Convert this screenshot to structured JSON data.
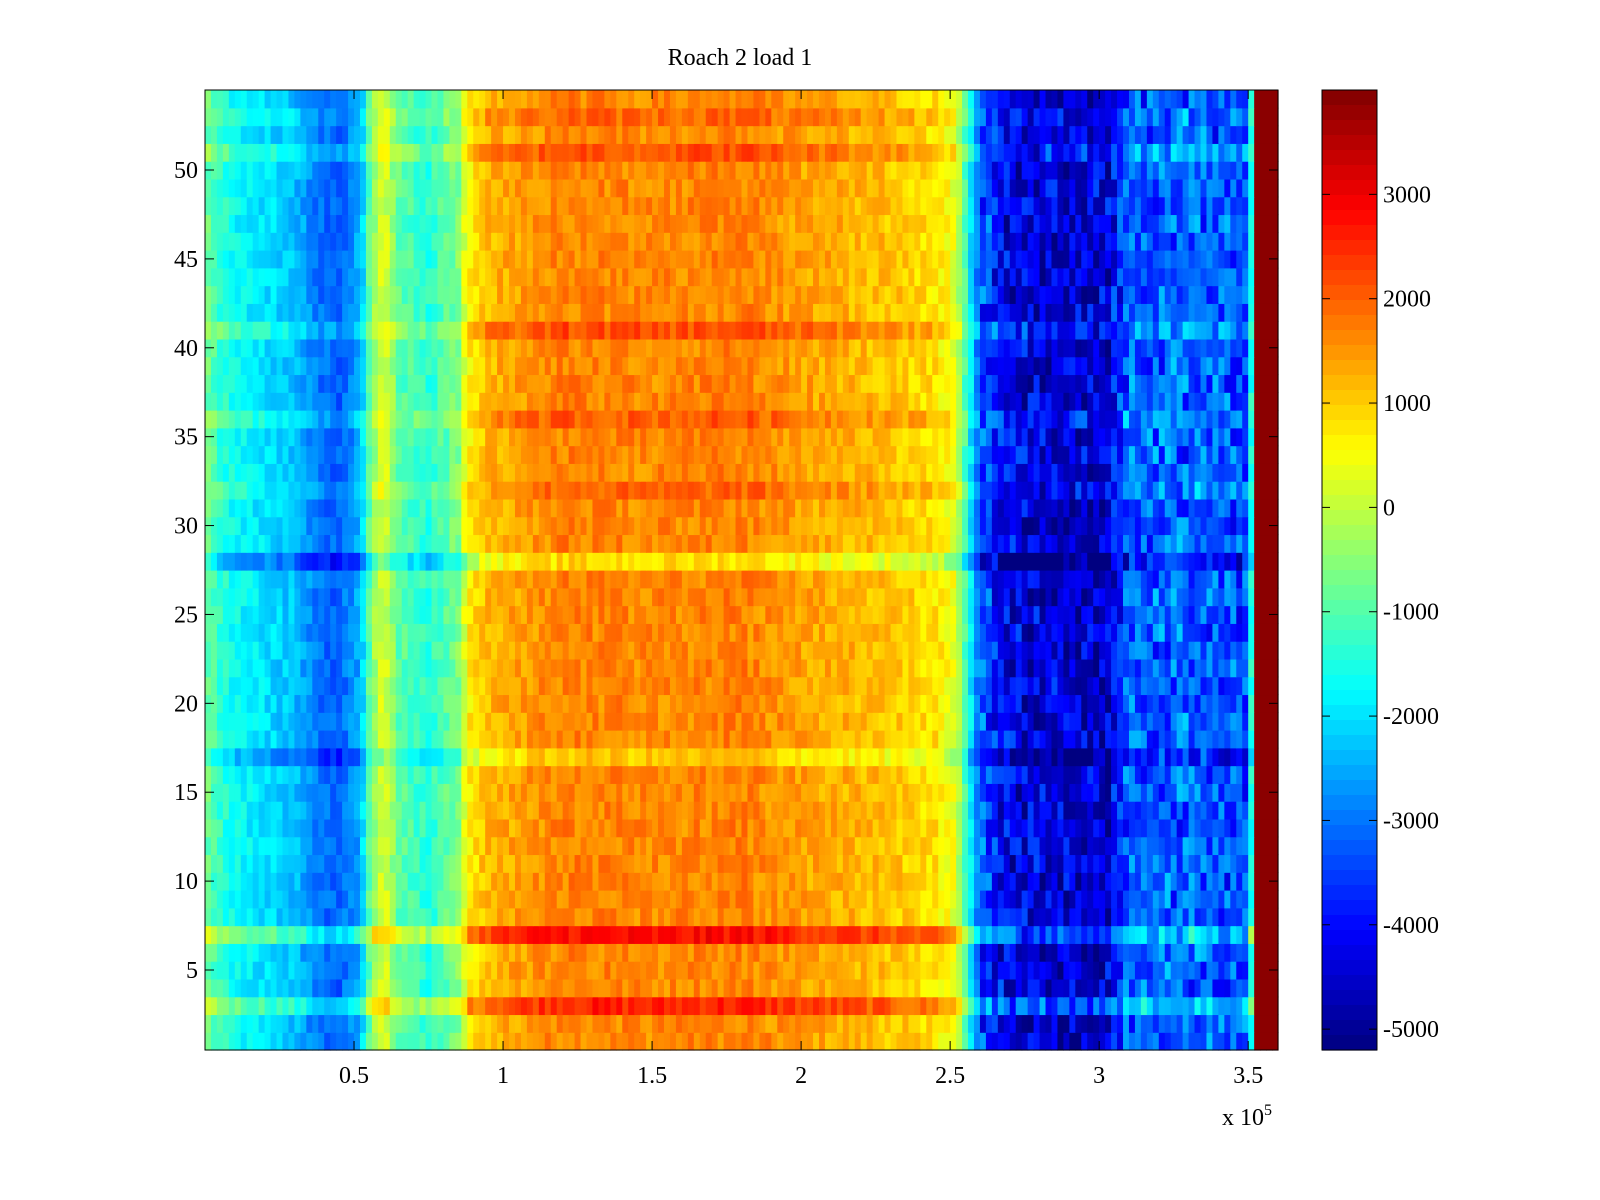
{
  "chart_data": {
    "type": "heatmap",
    "title": "Roach 2 load 1",
    "xlabel": "",
    "ylabel": "",
    "x_exponent_label": "x 10",
    "x_exponent_power": "5",
    "xlim": [
      0,
      3.6
    ],
    "ylim": [
      0.5,
      54.5
    ],
    "x_ticks": [
      0.5,
      1,
      1.5,
      2,
      2.5,
      3,
      3.5
    ],
    "x_tick_labels": [
      "0.5",
      "1",
      "1.5",
      "2",
      "2.5",
      "3",
      "3.5"
    ],
    "y_ticks": [
      5,
      10,
      15,
      20,
      25,
      30,
      35,
      40,
      45,
      50
    ],
    "y_tick_labels": [
      "5",
      "10",
      "15",
      "20",
      "25",
      "30",
      "35",
      "40",
      "45",
      "50"
    ],
    "colorbar": {
      "colormap": "jet",
      "clim": [
        -5200,
        4000
      ],
      "ticks": [
        -5000,
        -4000,
        -3000,
        -2000,
        -1000,
        0,
        1000,
        2000,
        3000
      ],
      "tick_labels": [
        "-5000",
        "-4000",
        "-3000",
        "-2000",
        "-1000",
        "0",
        "1000",
        "2000",
        "3000"
      ]
    },
    "rows": 54,
    "x_band_profile": [
      {
        "x": 0.0,
        "value": -700
      },
      {
        "x": 0.05,
        "value": -1300
      },
      {
        "x": 0.1,
        "value": -1700
      },
      {
        "x": 0.2,
        "value": -2000
      },
      {
        "x": 0.3,
        "value": -2300
      },
      {
        "x": 0.38,
        "value": -3000
      },
      {
        "x": 0.45,
        "value": -3200
      },
      {
        "x": 0.52,
        "value": -2500
      },
      {
        "x": 0.56,
        "value": -500
      },
      {
        "x": 0.6,
        "value": 300
      },
      {
        "x": 0.65,
        "value": -900
      },
      {
        "x": 0.75,
        "value": -1400
      },
      {
        "x": 0.85,
        "value": -600
      },
      {
        "x": 0.88,
        "value": 600
      },
      {
        "x": 0.95,
        "value": 1200
      },
      {
        "x": 1.2,
        "value": 1700
      },
      {
        "x": 1.5,
        "value": 1600
      },
      {
        "x": 1.8,
        "value": 1700
      },
      {
        "x": 2.0,
        "value": 1400
      },
      {
        "x": 2.3,
        "value": 1100
      },
      {
        "x": 2.45,
        "value": 800
      },
      {
        "x": 2.52,
        "value": 300
      },
      {
        "x": 2.56,
        "value": -1500
      },
      {
        "x": 2.6,
        "value": -3300
      },
      {
        "x": 2.7,
        "value": -4300
      },
      {
        "x": 3.0,
        "value": -4500
      },
      {
        "x": 3.04,
        "value": -4200
      },
      {
        "x": 3.1,
        "value": -3200
      },
      {
        "x": 3.3,
        "value": -3200
      },
      {
        "x": 3.49,
        "value": -3400
      },
      {
        "x": 3.51,
        "value": -1500
      },
      {
        "x": 3.52,
        "value": -4800
      },
      {
        "x": 3.525,
        "value": 3900
      },
      {
        "x": 3.6,
        "value": 3900
      }
    ],
    "row_offsets": [
      {
        "row": 3,
        "value": 900
      },
      {
        "row": 7,
        "value": 1100
      },
      {
        "row": 17,
        "value": -600
      },
      {
        "row": 28,
        "value": -800
      },
      {
        "row": 32,
        "value": 300
      },
      {
        "row": 36,
        "value": 400
      },
      {
        "row": 41,
        "value": 500
      },
      {
        "row": 51,
        "value": 500
      },
      {
        "row": 53,
        "value": 300
      }
    ]
  }
}
